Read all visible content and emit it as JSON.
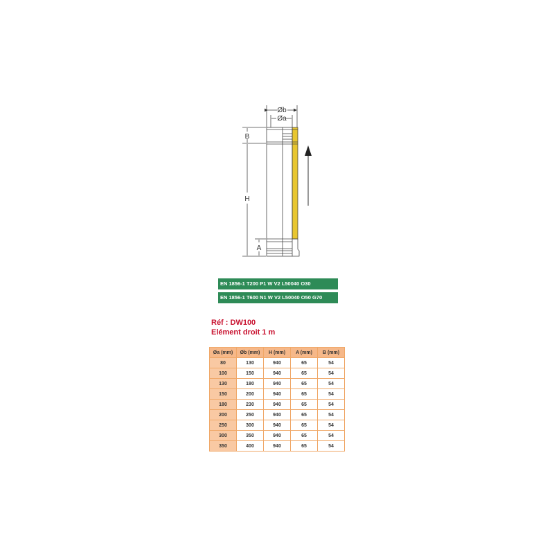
{
  "diagram": {
    "labels": {
      "outer_diameter": "Øb",
      "inner_diameter": "Øa",
      "height": "H",
      "top_band": "B",
      "bottom_band": "A"
    },
    "colors": {
      "insulation": "#e8c630",
      "line": "#444444"
    },
    "flow_arrow": "arrow-up-icon"
  },
  "specs": [
    "EN 1856-1 T200 P1 W V2 L50040 O30",
    "EN 1856-1 T600 N1 W V2 L50040 O50 G70"
  ],
  "spec_color": "#2e8b57",
  "reference": "Réf : DW100",
  "product_name": "Elément droit 1 m",
  "table": {
    "headers": [
      "Øa (mm)",
      "Øb (mm)",
      "H (mm)",
      "A (mm)",
      "B (mm)"
    ],
    "rows": [
      [
        "80",
        "130",
        "940",
        "65",
        "54"
      ],
      [
        "100",
        "150",
        "940",
        "65",
        "54"
      ],
      [
        "130",
        "180",
        "940",
        "65",
        "54"
      ],
      [
        "150",
        "200",
        "940",
        "65",
        "54"
      ],
      [
        "180",
        "230",
        "940",
        "65",
        "54"
      ],
      [
        "200",
        "250",
        "940",
        "65",
        "54"
      ],
      [
        "250",
        "300",
        "940",
        "65",
        "54"
      ],
      [
        "300",
        "350",
        "940",
        "65",
        "54"
      ],
      [
        "350",
        "400",
        "940",
        "65",
        "54"
      ]
    ]
  }
}
